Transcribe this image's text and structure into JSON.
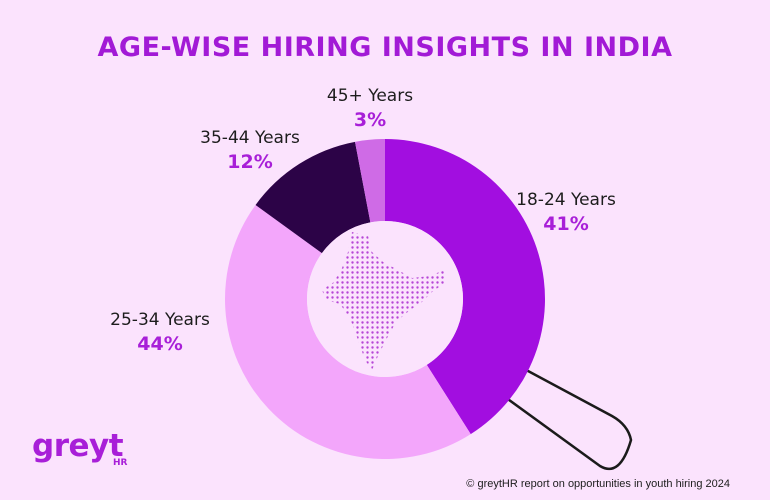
{
  "title": "AGE-WISE HIRING INSIGHTS IN INDIA",
  "chart_data": {
    "type": "pie",
    "variant": "donut",
    "categories": [
      "18-24 Years",
      "25-34 Years",
      "35-44 Years",
      "45+ Years"
    ],
    "values": [
      41,
      44,
      12,
      3
    ],
    "value_labels": [
      "41%",
      "44%",
      "12%",
      "3%"
    ],
    "colors": [
      "#a20ee0",
      "#f3a6fb",
      "#2c0347",
      "#cf6be6"
    ]
  },
  "logo": {
    "text": "greyt",
    "sub": "HR"
  },
  "source": "© greytHR report on opportunities in youth hiring 2024"
}
